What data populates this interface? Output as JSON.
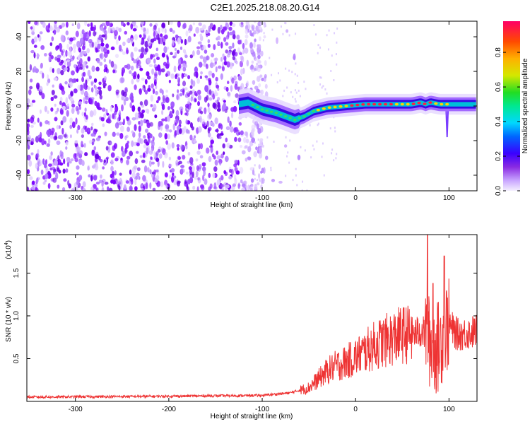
{
  "title": "C2E1.2025.218.08.20.G14",
  "chart_data": [
    {
      "type": "heatmap",
      "xlabel": "Height of straight line (km)",
      "ylabel": "Frequency (Hz)",
      "xlim": [
        -352,
        130
      ],
      "ylim": [
        -49,
        49
      ],
      "xticks": [
        -300,
        -200,
        -100,
        0,
        100
      ],
      "xtick_labels": [
        "-300",
        "-200",
        "-100",
        "0",
        "100"
      ],
      "yticks": [
        -40,
        -20,
        0,
        20,
        40
      ],
      "ytick_labels": [
        "-40",
        "-20",
        "0",
        "20",
        "40"
      ],
      "colorbar": {
        "label": "Normalized spectral amplitude",
        "range": [
          0,
          0.98
        ],
        "ticks": [
          0,
          0.2,
          0.4,
          0.6,
          0.8
        ],
        "tick_labels": [
          "0.0",
          "0.2",
          "0.4",
          "0.6",
          "0.8"
        ]
      },
      "signal_trace": {
        "x": [
          -125,
          -115,
          -100,
          -85,
          -75,
          -65,
          -55,
          -45,
          -30,
          -10,
          10,
          30,
          60,
          70,
          75,
          80,
          90,
          100,
          130
        ],
        "y": [
          1,
          2,
          -2,
          -4,
          -6,
          -8,
          -6,
          -3,
          -1,
          0,
          1,
          1,
          1,
          2,
          1,
          2,
          1,
          1,
          1
        ]
      }
    },
    {
      "type": "line",
      "xlabel": "Height of straight line (km)",
      "ylabel": "SNR (10 * v/v)",
      "y_multiplier": "(x10",
      "y_multiplier_exp": "4",
      "y_multiplier_close": ")",
      "xlim": [
        -352,
        130
      ],
      "ylim": [
        0,
        1.95
      ],
      "xticks": [
        -300,
        -200,
        -100,
        0,
        100
      ],
      "xtick_labels": [
        "-300",
        "-200",
        "-100",
        "0",
        "100"
      ],
      "yticks": [
        0.5,
        1.0,
        1.5
      ],
      "ytick_labels": [
        "0.5",
        "1.0",
        "1.5"
      ],
      "color": "#ee3333",
      "envelope": {
        "x": [
          -352,
          -200,
          -100,
          -70,
          -50,
          -40,
          -30,
          -20,
          -10,
          0,
          10,
          20,
          30,
          40,
          50,
          60,
          65,
          70,
          75,
          80,
          85,
          90,
          95,
          100,
          105,
          110,
          120,
          130
        ],
        "y": [
          0.05,
          0.06,
          0.07,
          0.1,
          0.16,
          0.26,
          0.36,
          0.42,
          0.46,
          0.52,
          0.58,
          0.65,
          0.7,
          0.74,
          0.78,
          0.79,
          0.8,
          0.82,
          0.78,
          0.68,
          0.62,
          0.65,
          0.85,
          0.9,
          0.82,
          0.78,
          0.8,
          0.82
        ]
      },
      "peaks": [
        {
          "x": 77,
          "y": 1.95
        },
        {
          "x": 83,
          "y": 1.38
        },
        {
          "x": 95,
          "y": 1.7
        }
      ]
    }
  ]
}
